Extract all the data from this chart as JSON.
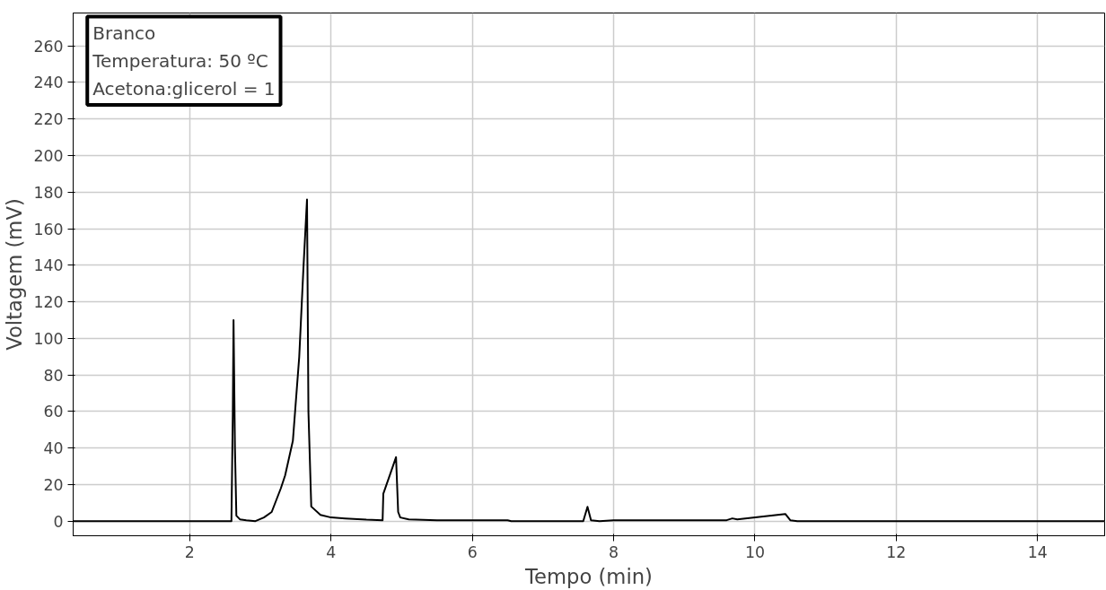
{
  "chart_data": {
    "type": "line",
    "xlabel": "Tempo (min)",
    "ylabel": "Voltagem (mV)",
    "annotations": [
      "Branco",
      "Temperatura: 50 ºC",
      "Acetona:glicerol = 1"
    ],
    "x": [
      0.35,
      2.59,
      2.61,
      2.62,
      2.64,
      2.66,
      2.71,
      2.8,
      2.93,
      3.05,
      3.16,
      3.29,
      3.35,
      3.46,
      3.55,
      3.61,
      3.66,
      3.68,
      3.72,
      3.85,
      4.0,
      4.2,
      4.5,
      4.73,
      4.74,
      4.84,
      4.92,
      4.95,
      4.98,
      5.1,
      5.5,
      6.5,
      6.55,
      7.57,
      7.63,
      7.68,
      7.8,
      8.0,
      9.6,
      9.68,
      9.75,
      10.43,
      10.5,
      10.6,
      14.95
    ],
    "series": [
      {
        "color": "#000000",
        "values": [
          0,
          0,
          60,
          110,
          40,
          3,
          1,
          0.5,
          0,
          2,
          5,
          18,
          25,
          44,
          90,
          139,
          176,
          60,
          8,
          3.4,
          2,
          1.5,
          0.8,
          0.5,
          15,
          26,
          35,
          5,
          2,
          1,
          0.5,
          0.5,
          0,
          0,
          7.8,
          0.5,
          0,
          0.5,
          0.5,
          1.5,
          1,
          3.9,
          0.5,
          0,
          0
        ]
      }
    ],
    "xlim": [
      0.35,
      14.95
    ],
    "ylim": [
      -8,
      278
    ],
    "xticks": [
      2,
      4,
      6,
      8,
      10,
      12,
      14
    ],
    "yticks": [
      0,
      20,
      40,
      60,
      80,
      100,
      120,
      140,
      160,
      180,
      200,
      220,
      240,
      260
    ],
    "grid": true,
    "marker": "none",
    "line_style": "solid"
  }
}
